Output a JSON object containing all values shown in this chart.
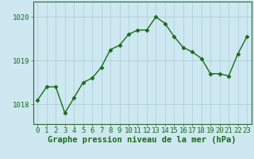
{
  "x": [
    0,
    1,
    2,
    3,
    4,
    5,
    6,
    7,
    8,
    9,
    10,
    11,
    12,
    13,
    14,
    15,
    16,
    17,
    18,
    19,
    20,
    21,
    22,
    23
  ],
  "y": [
    1018.1,
    1018.4,
    1018.4,
    1017.8,
    1018.15,
    1018.5,
    1018.6,
    1018.85,
    1019.25,
    1019.35,
    1019.6,
    1019.7,
    1019.7,
    1020.0,
    1019.85,
    1019.55,
    1019.3,
    1019.2,
    1019.05,
    1018.7,
    1018.7,
    1018.65,
    1019.15,
    1019.55
  ],
  "line_color": "#1a6b1a",
  "marker": "D",
  "marker_size": 2.5,
  "background_color": "#cde8f0",
  "grid_color": "#a8ccd8",
  "ylabel_ticks": [
    1018,
    1019,
    1020
  ],
  "ylim": [
    1017.55,
    1020.35
  ],
  "xlim": [
    -0.5,
    23.5
  ],
  "xlabel": "Graphe pression niveau de la mer (hPa)",
  "xlabel_fontsize": 7.5,
  "tick_fontsize": 6.5,
  "border_color": "#336633",
  "linewidth": 1.0
}
